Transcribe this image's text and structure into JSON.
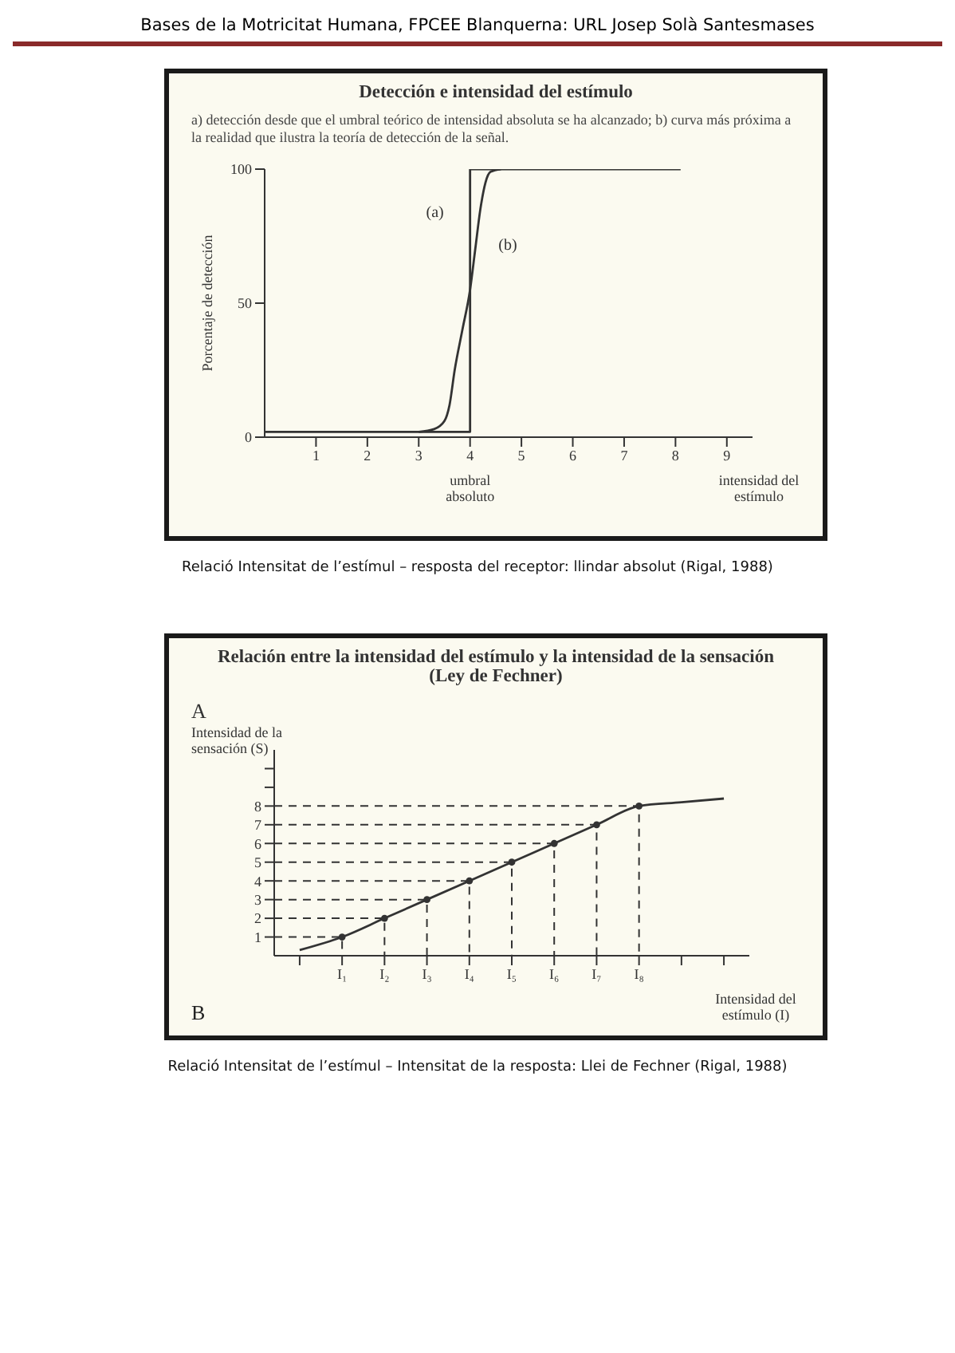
{
  "chart_data": [
    {
      "type": "line",
      "title": "Detección e intensidad del estímulo",
      "subtitle": "a) detección desde que el umbral teórico de intensidad absoluta se ha alcanzado; b) curva más próxima a la realidad que ilustra la teoría de detección de la señal.",
      "xlabel": "intensidad del estímulo",
      "ylabel": "Porcentaje de detección",
      "series": [
        {
          "name": "(a)",
          "color": "#333333",
          "x": [
            0,
            4,
            4,
            8.1
          ],
          "values": [
            2,
            2,
            100,
            100
          ]
        },
        {
          "name": "(b)",
          "color": "#333333",
          "x": [
            3,
            3.3,
            3.5,
            3.6,
            3.7,
            3.85,
            4,
            4.1,
            4.2,
            4.3,
            4.4,
            4.6
          ],
          "values": [
            2,
            3,
            6,
            12,
            25,
            40,
            55,
            70,
            85,
            95,
            99,
            100
          ]
        }
      ],
      "xlim": [
        0,
        9.5
      ],
      "xticks": [
        1,
        2,
        3,
        4,
        5,
        6,
        7,
        8,
        9
      ],
      "ylim": [
        0,
        100
      ],
      "yticks": [
        0,
        50,
        100
      ],
      "marker": "none",
      "annotations": [
        "Bases de la Motricitat Humana, FPCEE Blanquerna: URL  Josep Solà Santesmases",
        {
          "text": "umbral absoluto",
          "x": 4,
          "y": 0
        },
        "Relació Intensitat de l’estímul – resposta del receptor: llindar absolut (Rigal, 1988)"
      ]
    },
    {
      "type": "line",
      "title": "Relación entre la intensidad del estímulo y la intensidad de la sensación (Ley de Fechner)",
      "xlabel": "Intensidad del estímulo (I)",
      "ylabel": "Intensidad de la sensación (S)",
      "series": [
        {
          "color": "#333333",
          "values": [
            0.3,
            1,
            2,
            3,
            4,
            5,
            6,
            7,
            8,
            8.2,
            8.4
          ]
        },
        {
          "type": "scatter",
          "color": "#333333",
          "line_style": "dashed",
          "marker": "circle",
          "values": [
            null,
            1,
            2,
            3,
            4,
            5,
            6,
            7,
            8,
            null,
            null
          ]
        }
      ],
      "categories": [
        null,
        "I₁",
        "I₂",
        "I₃",
        "I₄",
        "I₅",
        "I₆",
        "I₇",
        "I₈",
        null,
        null
      ],
      "ylim": [
        0,
        11
      ],
      "yticks": [
        1,
        2,
        3,
        4,
        5,
        6,
        7,
        8,
        {
          "value": 9,
          "label": null
        },
        {
          "value": 10,
          "label": null
        }
      ],
      "marker": "none",
      "annotations": [
        "A",
        "B",
        "Relació Intensitat de l’estímul – Intensitat de la resposta: Llei de Fechner (Rigal, 1988)"
      ]
    }
  ]
}
